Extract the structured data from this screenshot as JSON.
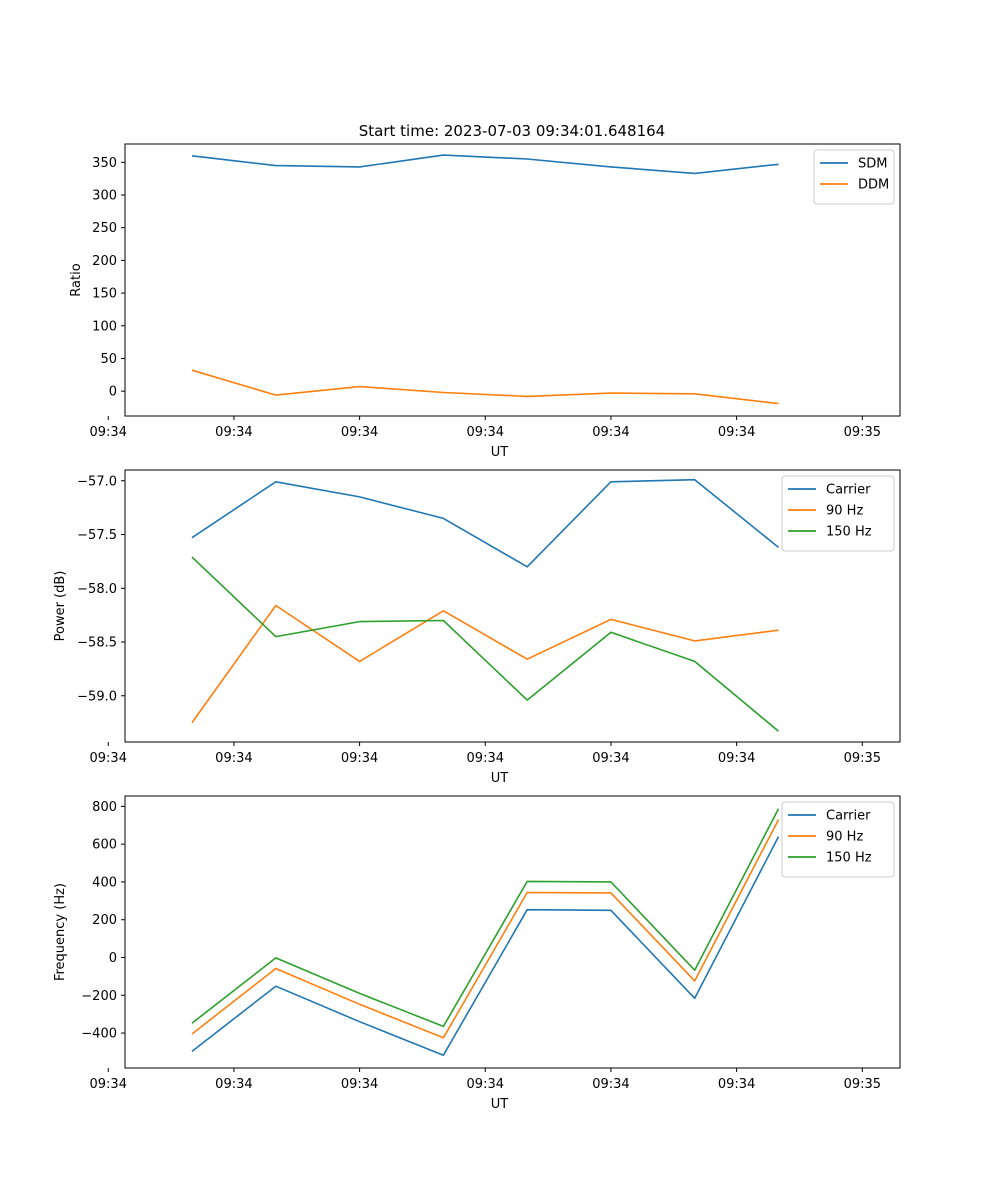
{
  "figure": {
    "title": "Start time: 2023-07-03 09:34:01.648164"
  },
  "chart_data": [
    {
      "type": "line",
      "title": "Start time: 2023-07-03 09:34:01.648164",
      "xlabel": "UT",
      "ylabel": "Ratio",
      "x": [
        1,
        2,
        3,
        4,
        5,
        6,
        7,
        8
      ],
      "xlim": [
        0.2,
        9.45
      ],
      "x_ticks": [
        0,
        1.5,
        3.0,
        4.5,
        6.0,
        7.5,
        9.0
      ],
      "x_tick_labels": [
        "09:34",
        "09:34",
        "09:34",
        "09:34",
        "09:34",
        "09:34",
        "09:35"
      ],
      "ylim": [
        -38,
        378
      ],
      "y_ticks": [
        0,
        50,
        100,
        150,
        200,
        250,
        300,
        350
      ],
      "y_tick_labels": [
        "0",
        "50",
        "100",
        "150",
        "200",
        "250",
        "300",
        "350"
      ],
      "legend": "top-right",
      "series": [
        {
          "name": "SDM",
          "color": "#1f77b4",
          "values": [
            360,
            345,
            343,
            361,
            355,
            343,
            333,
            347
          ]
        },
        {
          "name": "DDM",
          "color": "#ff7f0e",
          "values": [
            32,
            -6,
            7,
            -2,
            -8,
            -3,
            -4,
            -19
          ]
        }
      ]
    },
    {
      "type": "line",
      "title": "",
      "xlabel": "UT",
      "ylabel": "Power (dB)",
      "x": [
        1,
        2,
        3,
        4,
        5,
        6,
        7,
        8
      ],
      "xlim": [
        0.2,
        9.45
      ],
      "x_ticks": [
        0,
        1.5,
        3.0,
        4.5,
        6.0,
        7.5,
        9.0
      ],
      "x_tick_labels": [
        "09:34",
        "09:34",
        "09:34",
        "09:34",
        "09:34",
        "09:34",
        "09:35"
      ],
      "ylim": [
        -59.43,
        -56.9
      ],
      "y_ticks": [
        -59.0,
        -58.5,
        -58.0,
        -57.5,
        -57.0
      ],
      "y_tick_labels": [
        "−59.0",
        "−58.5",
        "−58.0",
        "−57.5",
        "−57.0"
      ],
      "legend": "top-right",
      "series": [
        {
          "name": "Carrier",
          "color": "#1f77b4",
          "values": [
            -57.53,
            -57.01,
            -57.15,
            -57.35,
            -57.8,
            -57.01,
            -56.99,
            -57.62
          ]
        },
        {
          "name": "90 Hz",
          "color": "#ff7f0e",
          "values": [
            -59.25,
            -58.16,
            -58.68,
            -58.21,
            -58.66,
            -58.29,
            -58.49,
            -58.39
          ]
        },
        {
          "name": "150 Hz",
          "color": "#2ca02c",
          "values": [
            -57.71,
            -58.45,
            -58.31,
            -58.3,
            -59.04,
            -58.41,
            -58.68,
            -59.33
          ]
        }
      ]
    },
    {
      "type": "line",
      "title": "",
      "xlabel": "UT",
      "ylabel": "Frequency (Hz)",
      "x": [
        1,
        2,
        3,
        4,
        5,
        6,
        7,
        8
      ],
      "xlim": [
        0.2,
        9.45
      ],
      "x_ticks": [
        0,
        1.5,
        3.0,
        4.5,
        6.0,
        7.5,
        9.0
      ],
      "x_tick_labels": [
        "09:34",
        "09:34",
        "09:34",
        "09:34",
        "09:34",
        "09:34",
        "09:35"
      ],
      "ylim": [
        -585,
        855
      ],
      "y_ticks": [
        -400,
        -200,
        0,
        200,
        400,
        600,
        800
      ],
      "y_tick_labels": [
        "−400",
        "−200",
        "0",
        "200",
        "400",
        "600",
        "800"
      ],
      "legend": "top-right",
      "series": [
        {
          "name": "Carrier",
          "color": "#1f77b4",
          "values": [
            -497,
            -152,
            -340,
            -517,
            253,
            250,
            -216,
            640
          ]
        },
        {
          "name": "90 Hz",
          "color": "#ff7f0e",
          "values": [
            -405,
            -58,
            -248,
            -425,
            344,
            342,
            -124,
            730
          ]
        },
        {
          "name": "150 Hz",
          "color": "#2ca02c",
          "values": [
            -348,
            -2,
            -190,
            -365,
            403,
            400,
            -67,
            788
          ]
        }
      ]
    }
  ]
}
